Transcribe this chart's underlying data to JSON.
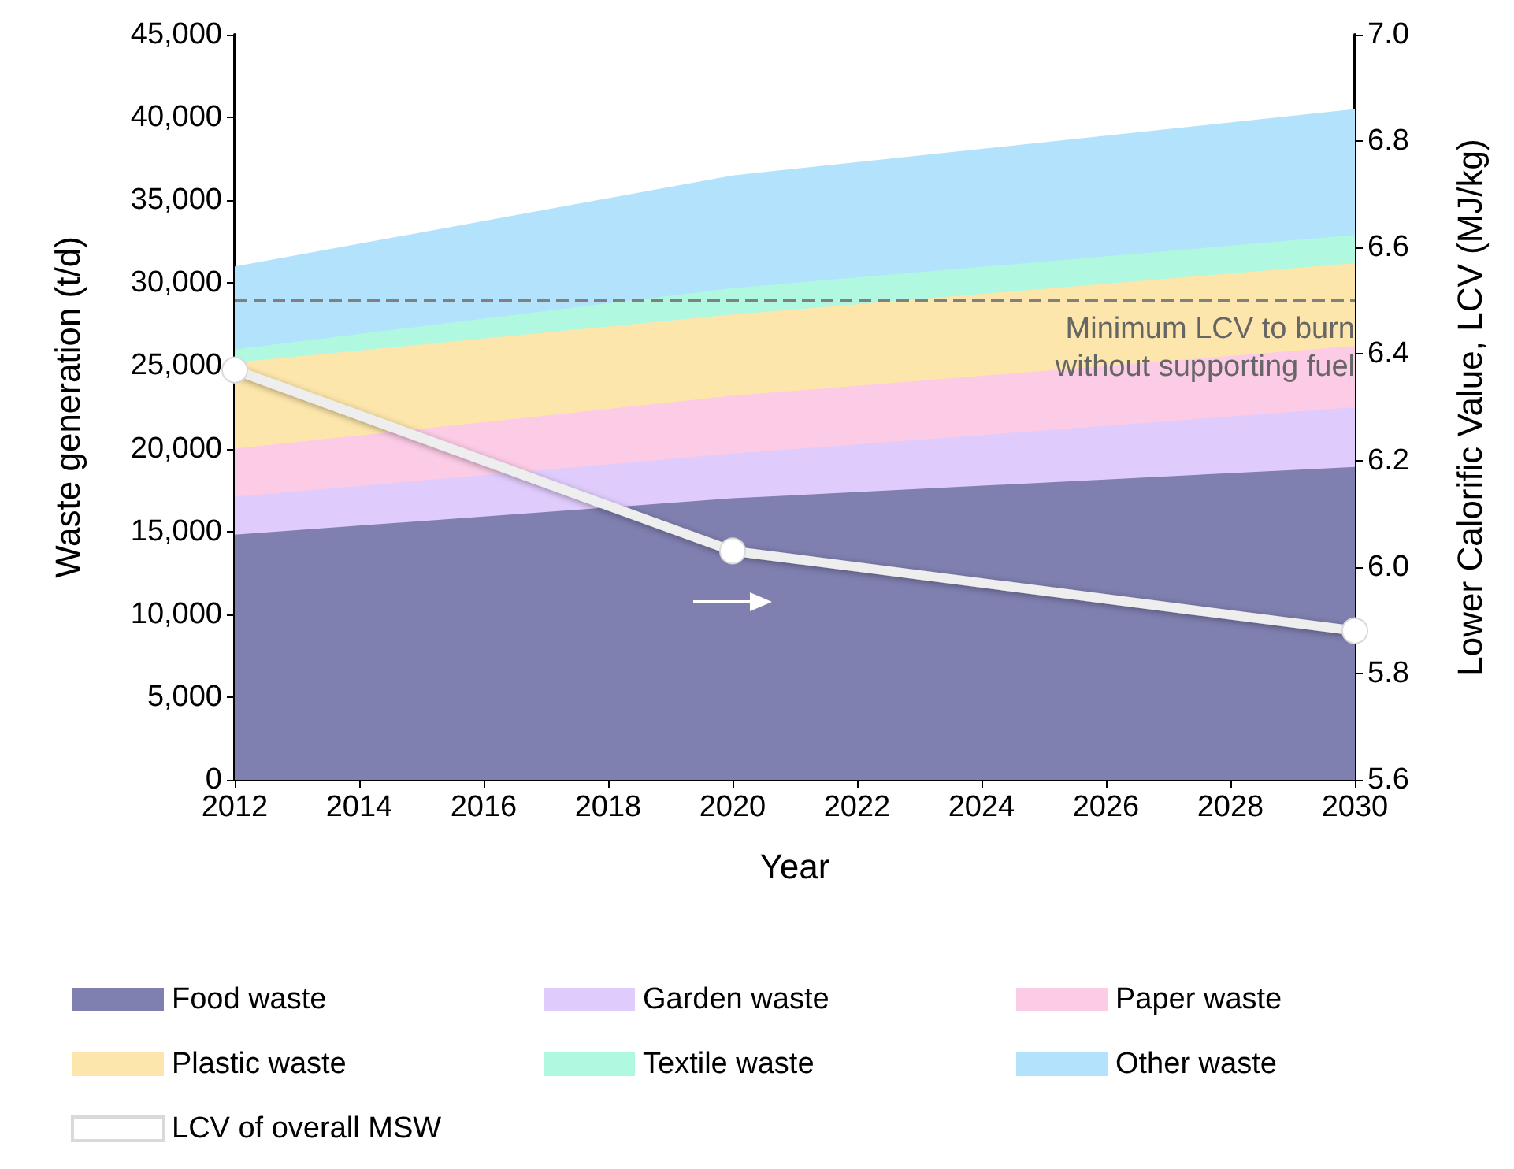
{
  "chart_data": {
    "type": "area",
    "stacked": true,
    "xlabel": "Year",
    "ylabel": "Waste generation (t/d)",
    "y2label": "Lower Calorific Value, LCV (MJ/kg)",
    "x": [
      2012,
      2020,
      2030
    ],
    "series": [
      {
        "name": "Food waste",
        "color": "#7f7fb0",
        "values": [
          14800,
          17000,
          18900
        ]
      },
      {
        "name": "Garden waste",
        "color": "#e0ccfc",
        "values": [
          2300,
          2700,
          3600
        ]
      },
      {
        "name": "Paper waste",
        "color": "#fccbe6",
        "values": [
          2900,
          3500,
          3700
        ]
      },
      {
        "name": "Plastic waste",
        "color": "#fde6ab",
        "values": [
          5200,
          4900,
          5000
        ]
      },
      {
        "name": "Textile waste",
        "color": "#b0f8df",
        "values": [
          800,
          1600,
          1700
        ]
      },
      {
        "name": "Other waste",
        "color": "#b2e2fc",
        "values": [
          5000,
          6800,
          7600
        ]
      },
      {
        "name": "LCV of overall MSW",
        "type": "line",
        "axis": "y2",
        "color": "#eeeeee",
        "marker": "circle",
        "values": [
          6.37,
          6.03,
          5.88
        ]
      }
    ],
    "xlim": [
      2012,
      2030
    ],
    "xticks": [
      2012,
      2014,
      2016,
      2018,
      2020,
      2022,
      2024,
      2026,
      2028,
      2030
    ],
    "ylim": [
      0,
      45000
    ],
    "yticks": [
      0,
      {
        "value": 5000,
        "label": "5,000"
      },
      {
        "value": 10000,
        "label": "10,000"
      },
      {
        "value": 15000,
        "label": "15,000"
      },
      {
        "value": 20000,
        "label": "20,000"
      },
      {
        "value": 25000,
        "label": "25,000"
      },
      {
        "value": 30000,
        "label": "30,000"
      },
      {
        "value": 35000,
        "label": "35,000"
      },
      {
        "value": 40000,
        "label": "40,000"
      },
      {
        "value": 45000,
        "label": "45,000"
      }
    ],
    "y2lim": [
      5.6,
      7.0
    ],
    "y2ticks": [
      5.6,
      5.8,
      {
        "value": 6.0,
        "label": "6.0"
      },
      6.2,
      6.4,
      6.6,
      6.8,
      {
        "value": 7.0,
        "label": "7.0"
      }
    ],
    "ref_lines": [
      {
        "axis": "y2",
        "value": 6.5,
        "label": "Minimum LCV to burn\nwithout supporting fuel",
        "color": "#808080",
        "line_style": "dashed"
      }
    ],
    "grid": false,
    "legend": "bottom"
  }
}
